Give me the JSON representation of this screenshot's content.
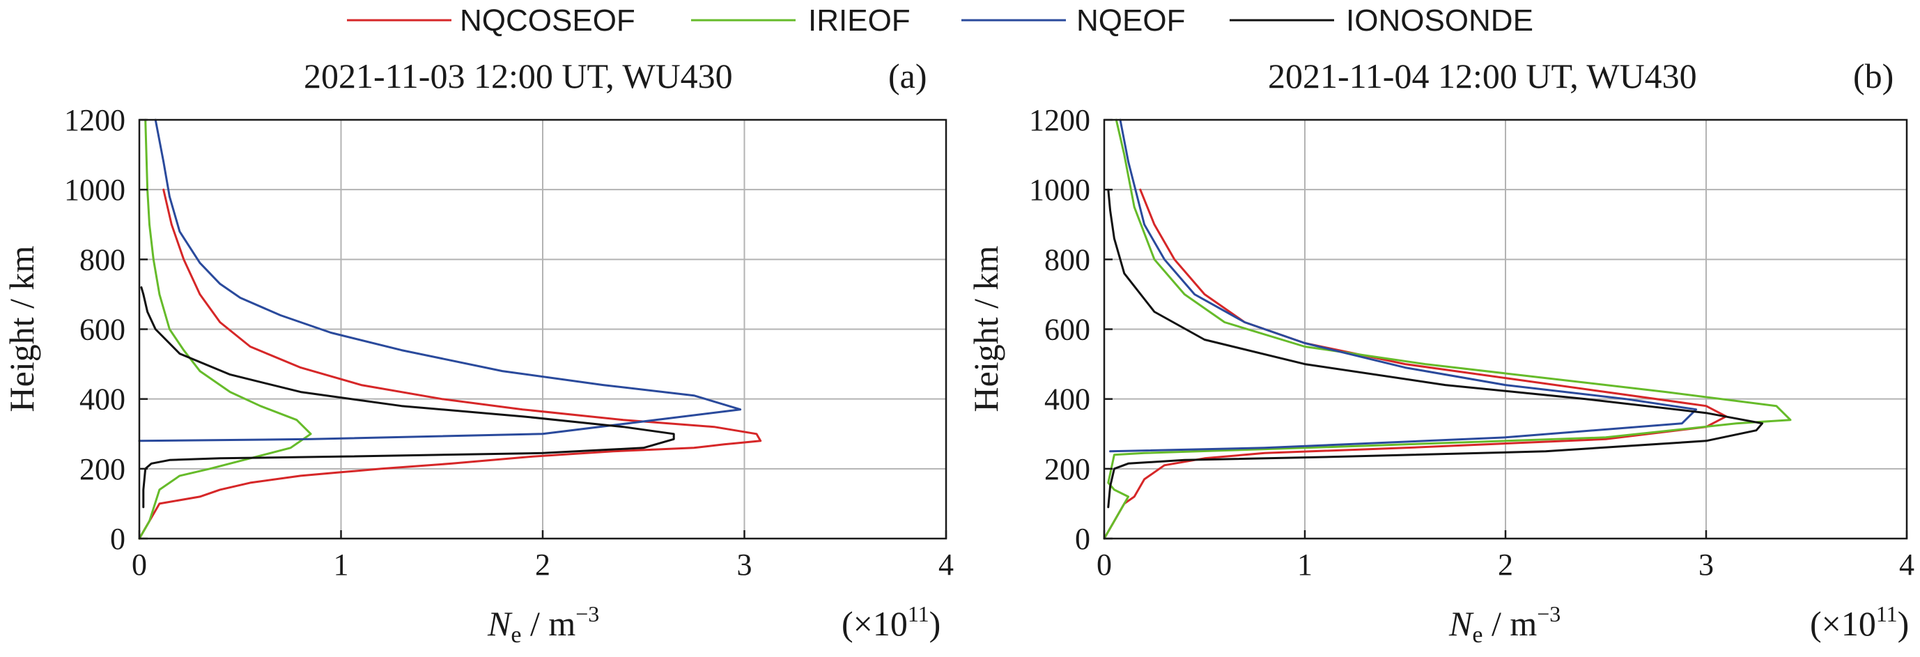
{
  "colors": {
    "NQCOSEOF": "#d62728",
    "IRIEOF": "#66bb2a",
    "NQEOF": "#2a4a9c",
    "IONOSONDE": "#111111"
  },
  "legend": [
    "NQCOSEOF",
    "IRIEOF",
    "NQEOF",
    "IONOSONDE"
  ],
  "chart_data": [
    {
      "type": "line",
      "title": "2021-11-03 12:00 UT, WU430",
      "panel_label": "(a)",
      "xlabel_symbol": "N",
      "xlabel_subscript": "e",
      "xlabel_unit": " / m",
      "xlabel_exp": "−3",
      "x_multiplier_prefix": "(×10",
      "x_multiplier_exp": "11",
      "x_multiplier_suffix": ")",
      "ylabel": "Height / km",
      "xlim": [
        0,
        4
      ],
      "ylim": [
        0,
        1200
      ],
      "xticks": [
        "0",
        "1",
        "2",
        "3",
        "4"
      ],
      "yticks": [
        "0",
        "200",
        "400",
        "600",
        "800",
        "1000",
        "1200"
      ],
      "grid": true,
      "series": [
        {
          "name": "NQCOSEOF",
          "x": [
            0.0,
            0.1,
            0.3,
            0.4,
            0.55,
            0.8,
            1.0,
            1.2,
            1.55,
            1.95,
            2.35,
            2.75,
            2.9,
            3.08,
            3.06,
            2.85,
            2.4,
            1.9,
            1.5,
            1.1,
            0.8,
            0.55,
            0.4,
            0.3,
            0.22,
            0.16,
            0.12
          ],
          "y": [
            0,
            100,
            120,
            140,
            160,
            180,
            190,
            200,
            215,
            235,
            250,
            260,
            270,
            280,
            300,
            320,
            340,
            370,
            400,
            440,
            490,
            550,
            620,
            700,
            800,
            900,
            1000
          ]
        },
        {
          "name": "IRIEOF",
          "x": [
            0.0,
            0.05,
            0.1,
            0.2,
            0.35,
            0.55,
            0.75,
            0.85,
            0.78,
            0.6,
            0.45,
            0.3,
            0.22,
            0.15,
            0.1,
            0.07,
            0.05,
            0.04,
            0.03
          ],
          "y": [
            0,
            50,
            140,
            180,
            200,
            230,
            260,
            300,
            340,
            380,
            420,
            480,
            540,
            600,
            700,
            800,
            900,
            1000,
            1200
          ]
        },
        {
          "name": "NQEOF",
          "x": [
            0.0,
            0.85,
            2.0,
            2.98,
            2.75,
            2.3,
            1.8,
            1.3,
            0.95,
            0.7,
            0.5,
            0.4,
            0.3,
            0.2,
            0.15,
            0.12,
            0.08
          ],
          "y": [
            280,
            285,
            300,
            370,
            410,
            440,
            480,
            540,
            590,
            640,
            690,
            730,
            790,
            880,
            980,
            1080,
            1200
          ]
        },
        {
          "name": "IONOSONDE",
          "x": [
            0.02,
            0.02,
            0.03,
            0.06,
            0.15,
            0.4,
            1.0,
            2.0,
            2.5,
            2.65,
            2.65,
            2.4,
            1.9,
            1.3,
            0.8,
            0.45,
            0.2,
            0.08,
            0.04,
            0.02,
            0.01
          ],
          "y": [
            90,
            140,
            200,
            215,
            225,
            230,
            235,
            245,
            260,
            285,
            300,
            320,
            350,
            380,
            420,
            470,
            530,
            600,
            650,
            700,
            720
          ]
        }
      ]
    },
    {
      "type": "line",
      "title": "2021-11-04 12:00 UT, WU430",
      "panel_label": "(b)",
      "xlabel_symbol": "N",
      "xlabel_subscript": "e",
      "xlabel_unit": " / m",
      "xlabel_exp": "−3",
      "x_multiplier_prefix": "(×10",
      "x_multiplier_exp": "11",
      "x_multiplier_suffix": ")",
      "ylabel": "Height / km",
      "xlim": [
        0,
        4
      ],
      "ylim": [
        0,
        1200
      ],
      "xticks": [
        "0",
        "1",
        "2",
        "3",
        "4"
      ],
      "yticks": [
        "0",
        "200",
        "400",
        "600",
        "800",
        "1000",
        "1200"
      ],
      "grid": true,
      "series": [
        {
          "name": "NQCOSEOF",
          "x": [
            0.0,
            0.05,
            0.1,
            0.15,
            0.2,
            0.3,
            0.5,
            0.8,
            1.5,
            2.5,
            3.0,
            3.1,
            3.0,
            2.5,
            2.0,
            1.5,
            1.0,
            0.7,
            0.5,
            0.35,
            0.25,
            0.18
          ],
          "y": [
            0,
            50,
            100,
            120,
            170,
            210,
            230,
            245,
            260,
            285,
            320,
            350,
            380,
            420,
            460,
            500,
            560,
            620,
            700,
            800,
            900,
            1000
          ]
        },
        {
          "name": "IRIEOF",
          "x": [
            0.0,
            0.1,
            0.12,
            0.05,
            0.02,
            0.05,
            0.2,
            1.0,
            2.5,
            3.15,
            3.42,
            3.35,
            2.8,
            2.2,
            1.6,
            1.0,
            0.6,
            0.4,
            0.25,
            0.15,
            0.1,
            0.06
          ],
          "y": [
            0,
            100,
            120,
            140,
            160,
            240,
            245,
            260,
            290,
            330,
            340,
            380,
            420,
            460,
            500,
            550,
            620,
            700,
            800,
            950,
            1100,
            1200
          ]
        },
        {
          "name": "NQEOF",
          "x": [
            0.03,
            0.8,
            2.0,
            2.88,
            2.95,
            2.6,
            2.0,
            1.5,
            1.0,
            0.7,
            0.45,
            0.3,
            0.2,
            0.12,
            0.08
          ],
          "y": [
            250,
            260,
            290,
            330,
            370,
            400,
            440,
            490,
            560,
            620,
            700,
            800,
            900,
            1080,
            1200
          ]
        },
        {
          "name": "IONOSONDE",
          "x": [
            0.02,
            0.03,
            0.05,
            0.12,
            0.4,
            1.2,
            2.2,
            3.0,
            3.25,
            3.28,
            3.0,
            2.4,
            1.7,
            1.0,
            0.5,
            0.25,
            0.1,
            0.05,
            0.03,
            0.02
          ],
          "y": [
            90,
            150,
            200,
            215,
            225,
            235,
            250,
            280,
            310,
            330,
            360,
            400,
            440,
            500,
            570,
            650,
            760,
            860,
            940,
            1000
          ]
        }
      ]
    }
  ]
}
